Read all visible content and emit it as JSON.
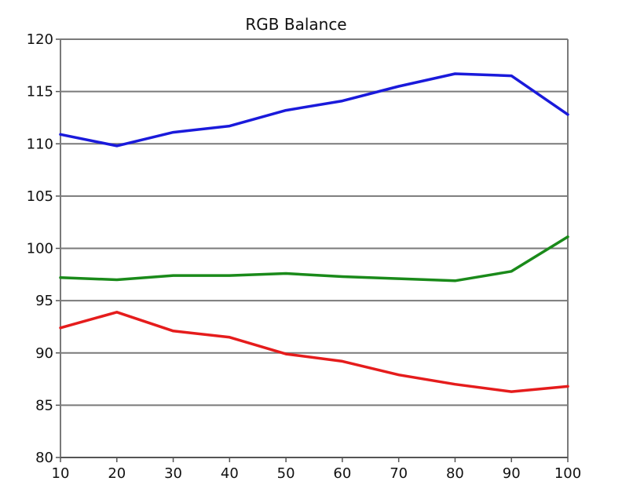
{
  "chart_data": {
    "type": "line",
    "title": "RGB Balance",
    "xlabel": "",
    "ylabel": "",
    "x": [
      10,
      20,
      30,
      40,
      50,
      60,
      70,
      80,
      90,
      100
    ],
    "xlim": [
      10,
      100
    ],
    "ylim": [
      80,
      120
    ],
    "x_ticks": [
      "10",
      "20",
      "30",
      "40",
      "50",
      "60",
      "70",
      "80",
      "90",
      "100"
    ],
    "y_ticks": [
      "80",
      "85",
      "90",
      "95",
      "100",
      "105",
      "110",
      "115",
      "120"
    ],
    "grid": "horizontal",
    "legend": "none",
    "series": [
      {
        "color": "#1a1adb",
        "values": [
          110.9,
          109.8,
          111.1,
          111.7,
          113.2,
          114.1,
          115.5,
          116.7,
          116.5,
          112.8
        ]
      },
      {
        "color": "#1a8a1a",
        "values": [
          97.2,
          97.0,
          97.4,
          97.4,
          97.6,
          97.3,
          97.1,
          96.9,
          97.8,
          101.1
        ]
      },
      {
        "color": "#e51c1c",
        "values": [
          92.4,
          93.9,
          92.1,
          91.5,
          89.9,
          89.2,
          87.9,
          87.0,
          86.3,
          86.8
        ]
      }
    ]
  }
}
